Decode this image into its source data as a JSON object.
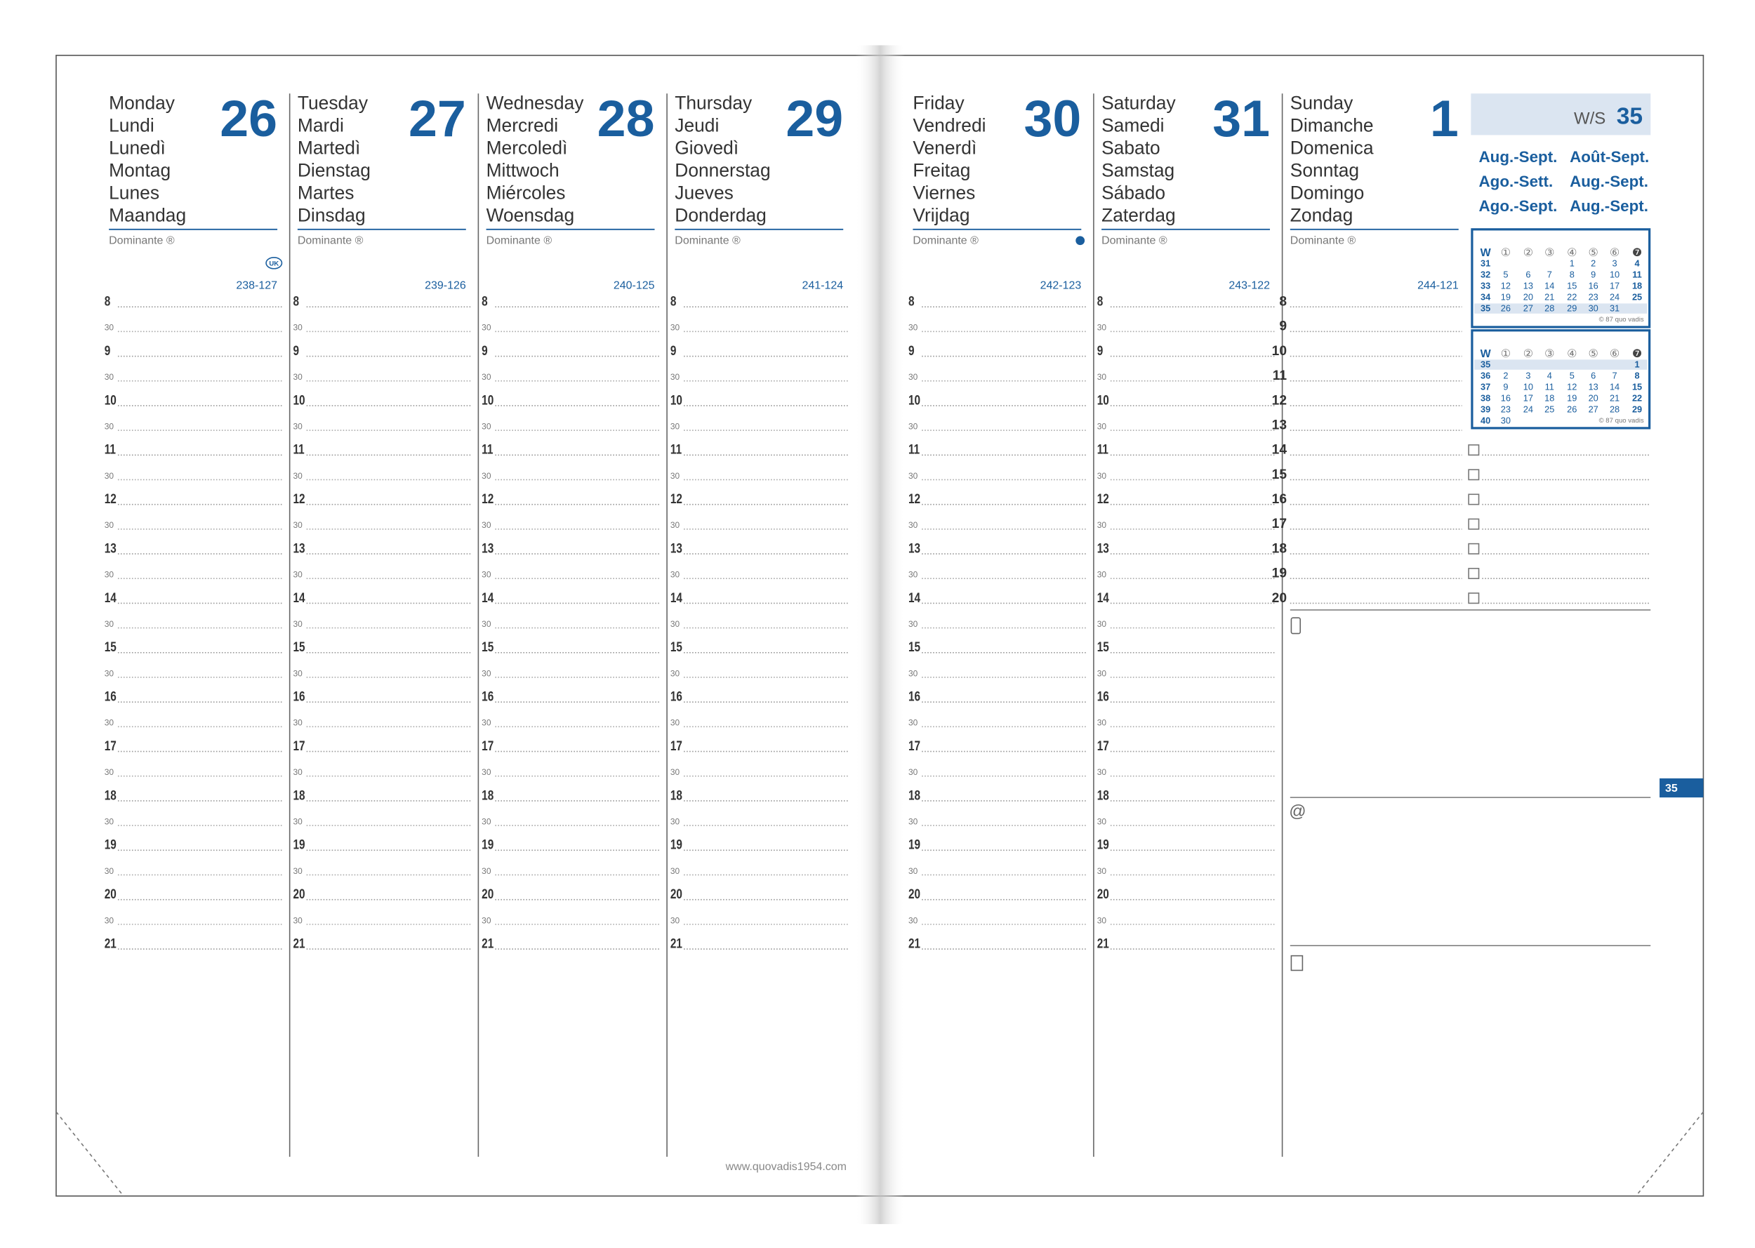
{
  "days": [
    {
      "names": [
        "Monday",
        "Lundi",
        "Lunedì",
        "Montag",
        "Lunes",
        "Maandag"
      ],
      "date": "26",
      "dominante": "Dominante ®",
      "day_count": "238-127"
    },
    {
      "names": [
        "Tuesday",
        "Mardi",
        "Martedì",
        "Dienstag",
        "Martes",
        "Dinsdag"
      ],
      "date": "27",
      "dominante": "Dominante ®",
      "day_count": "239-126"
    },
    {
      "names": [
        "Wednesday",
        "Mercredi",
        "Mercoledì",
        "Mittwoch",
        "Miércoles",
        "Woensdag"
      ],
      "date": "28",
      "dominante": "Dominante ®",
      "day_count": "240-125"
    },
    {
      "names": [
        "Thursday",
        "Jeudi",
        "Giovedì",
        "Donnerstag",
        "Jueves",
        "Donderdag"
      ],
      "date": "29",
      "dominante": "Dominante ®",
      "day_count": "241-124"
    },
    {
      "names": [
        "Friday",
        "Vendredi",
        "Venerdì",
        "Freitag",
        "Viernes",
        "Vrijdag"
      ],
      "date": "30",
      "dominante": "Dominante ®",
      "day_count": "242-123"
    },
    {
      "names": [
        "Saturday",
        "Samedi",
        "Sabato",
        "Samstag",
        "Sábado",
        "Zaterdag"
      ],
      "date": "31",
      "dominante": "Dominante ®",
      "day_count": "243-122"
    },
    {
      "names": [
        "Sunday",
        "Dimanche",
        "Domenica",
        "Sonntag",
        "Domingo",
        "Zondag"
      ],
      "date": "1",
      "dominante": "Dominante ®",
      "day_count": "244-121"
    }
  ],
  "hours": [
    "8",
    "9",
    "10",
    "11",
    "12",
    "13",
    "14",
    "15",
    "16",
    "17",
    "18",
    "19",
    "20",
    "21"
  ],
  "half_hour": "30",
  "sunday_hours": [
    "8",
    "9",
    "10",
    "11",
    "12",
    "13",
    "14",
    "15",
    "16",
    "17",
    "18",
    "19",
    "20"
  ],
  "badge": "UK",
  "week": {
    "label": "W/S",
    "number": "35"
  },
  "months": [
    "Aug.-Sept.",
    "Août-Sept.",
    "Ago.-Sett.",
    "Aug.-Sept.",
    "Ago.-Sept.",
    "Aug.-Sept."
  ],
  "mini_calendars": [
    {
      "header": [
        "W",
        "①",
        "②",
        "③",
        "④",
        "⑤",
        "⑥",
        "❼"
      ],
      "rows": [
        [
          "31",
          "",
          "",
          "",
          "1",
          "2",
          "3",
          "4"
        ],
        [
          "32",
          "5",
          "6",
          "7",
          "8",
          "9",
          "10",
          "11"
        ],
        [
          "33",
          "12",
          "13",
          "14",
          "15",
          "16",
          "17",
          "18"
        ],
        [
          "34",
          "19",
          "20",
          "21",
          "22",
          "23",
          "24",
          "25"
        ],
        [
          "35",
          "26",
          "27",
          "28",
          "29",
          "30",
          "31",
          ""
        ]
      ],
      "footer": "© 87 quo vadis"
    },
    {
      "header": [
        "W",
        "①",
        "②",
        "③",
        "④",
        "⑤",
        "⑥",
        "❼"
      ],
      "rows": [
        [
          "35",
          "",
          "",
          "",
          "",
          "",
          "",
          "1"
        ],
        [
          "36",
          "2",
          "3",
          "4",
          "5",
          "6",
          "7",
          "8"
        ],
        [
          "37",
          "9",
          "10",
          "11",
          "12",
          "13",
          "14",
          "15"
        ],
        [
          "38",
          "16",
          "17",
          "18",
          "19",
          "20",
          "21",
          "22"
        ],
        [
          "39",
          "23",
          "24",
          "25",
          "26",
          "27",
          "28",
          "29"
        ],
        [
          "40",
          "30",
          "",
          "",
          "",
          "",
          "",
          ""
        ]
      ],
      "footer": "© 87 quo vadis"
    }
  ],
  "at_sign": "@",
  "tab": "35",
  "website": "www.quovadis1954.com"
}
